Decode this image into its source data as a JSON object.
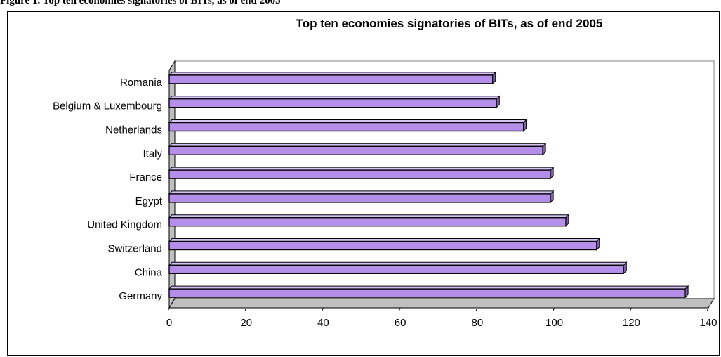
{
  "page": {
    "heading": "Figure 1. Top ten economies signatories of BITs, as of end 2005"
  },
  "colors": {
    "bar_face": "#b48ee8",
    "bar_top": "#d6c2f5",
    "bar_end": "#7e5fae",
    "wall": "#c0c0c0",
    "floor": "#c0c0c0",
    "outline": "#000000"
  },
  "chart_data": {
    "type": "bar",
    "orientation": "horizontal",
    "title": "Top ten economies signatories of BITs, as of end 2005",
    "categories": [
      "Germany",
      "China",
      "Switzerland",
      "United Kingdom",
      "Egypt",
      "France",
      "Italy",
      "Netherlands",
      "Belgium & Luxembourg",
      "Romania"
    ],
    "values": [
      134,
      118,
      111,
      103,
      99,
      99,
      97,
      92,
      85,
      84
    ],
    "xlim": [
      0,
      140
    ],
    "xticks": [
      "0",
      "20",
      "40",
      "60",
      "80",
      "100",
      "120",
      "140"
    ],
    "grid": false,
    "legend": "none"
  }
}
